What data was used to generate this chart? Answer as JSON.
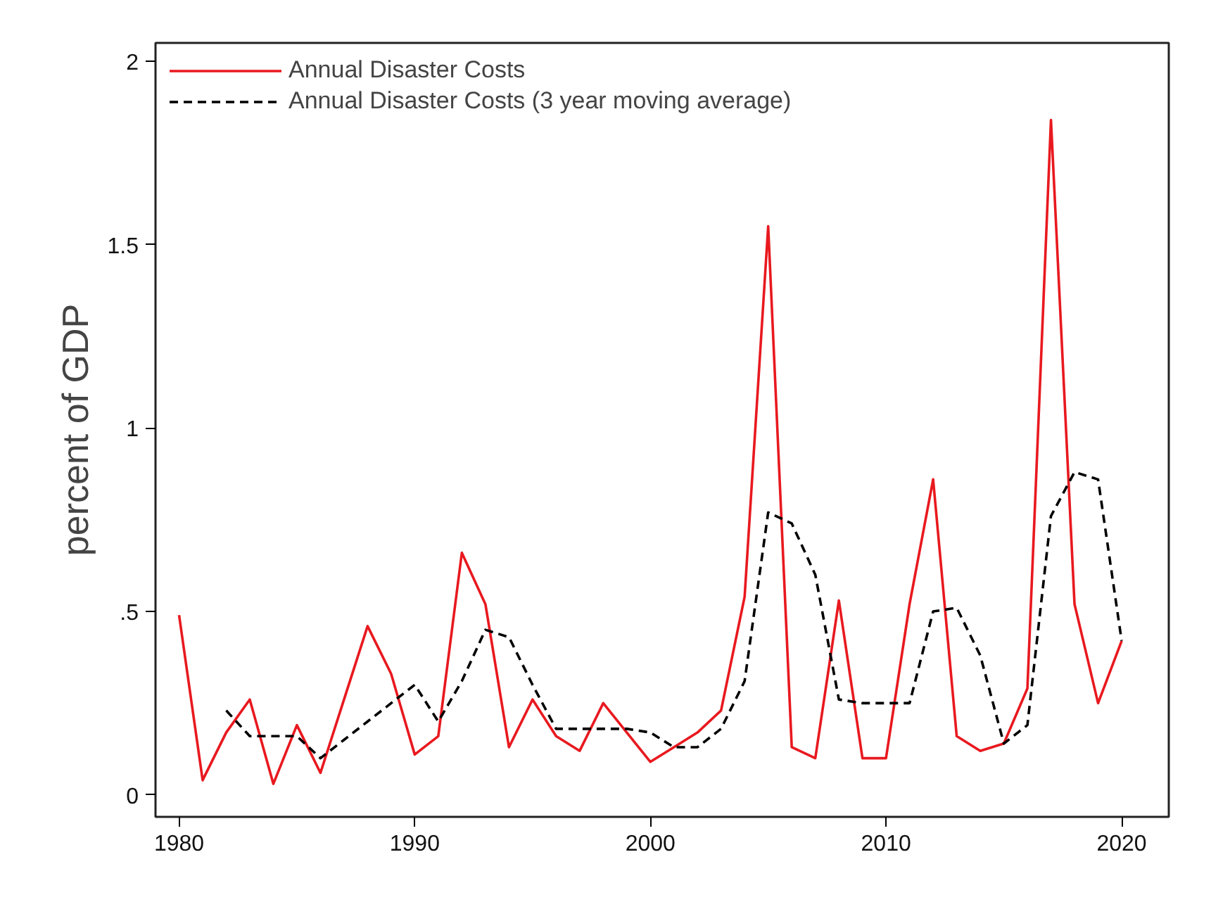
{
  "chart_data": {
    "type": "line",
    "ylabel": "percent of GDP",
    "legend": "top left",
    "grid": false,
    "xlim": [
      1979,
      2022
    ],
    "xticks": [
      1980,
      1990,
      2000,
      2010,
      2020
    ],
    "ylim": [
      -0.06,
      2.05
    ],
    "yticks": [
      0,
      {
        "value": 0.5,
        "label": ".5"
      },
      1,
      1.5,
      2
    ],
    "series": [
      {
        "name": "Annual Disaster Costs",
        "color": "#e8191f",
        "line_style": "solid",
        "x": [
          1980,
          1981,
          1982,
          1983,
          1984,
          1985,
          1986,
          1987,
          1988,
          1989,
          1990,
          1991,
          1992,
          1993,
          1994,
          1995,
          1996,
          1997,
          1998,
          1999,
          2000,
          2001,
          2002,
          2003,
          2004,
          2005,
          2006,
          2007,
          2008,
          2009,
          2010,
          2011,
          2012,
          2013,
          2014,
          2015,
          2016,
          2017,
          2018,
          2019,
          2020
        ],
        "values": [
          0.49,
          0.04,
          0.17,
          0.26,
          0.03,
          0.19,
          0.06,
          0.26,
          0.46,
          0.33,
          0.11,
          0.16,
          0.66,
          0.52,
          0.13,
          0.26,
          0.16,
          0.12,
          0.25,
          0.17,
          0.09,
          0.13,
          0.17,
          0.23,
          0.54,
          1.55,
          0.13,
          0.1,
          0.53,
          0.1,
          0.1,
          0.52,
          0.86,
          0.16,
          0.12,
          0.14,
          0.29,
          1.84,
          0.52,
          0.25,
          0.42
        ]
      },
      {
        "name": "Annual Disaster Costs (3 year moving average)",
        "color": "#000000",
        "line_style": "dashed",
        "x": [
          1982,
          1983,
          1984,
          1985,
          1986,
          1987,
          1988,
          1989,
          1990,
          1991,
          1992,
          1993,
          1994,
          1995,
          1996,
          1997,
          1998,
          1999,
          2000,
          2001,
          2002,
          2003,
          2004,
          2005,
          2006,
          2007,
          2008,
          2009,
          2010,
          2011,
          2012,
          2013,
          2014,
          2015,
          2016,
          2017,
          2018,
          2019,
          2020
        ],
        "values": [
          0.23,
          0.16,
          0.16,
          0.16,
          0.1,
          0.15,
          0.2,
          0.25,
          0.3,
          0.2,
          0.31,
          0.45,
          0.43,
          0.3,
          0.18,
          0.18,
          0.18,
          0.18,
          0.17,
          0.13,
          0.13,
          0.18,
          0.31,
          0.77,
          0.74,
          0.6,
          0.26,
          0.25,
          0.25,
          0.25,
          0.5,
          0.51,
          0.38,
          0.14,
          0.19,
          0.76,
          0.88,
          0.86,
          0.42
        ]
      }
    ]
  }
}
